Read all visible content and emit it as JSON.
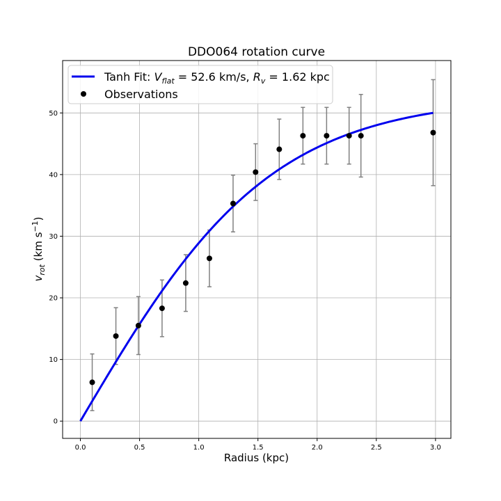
{
  "chart_data": {
    "type": "line",
    "title": "DDO064 rotation curve",
    "xlabel": "Radius (kpc)",
    "ylabel": "v_rot (km s^-1)",
    "xlim": [
      -0.15,
      3.13
    ],
    "ylim": [
      -2.8,
      58.5
    ],
    "x_ticks": [
      "0.0",
      "0.5",
      "1.0",
      "1.5",
      "2.0",
      "2.5",
      "3.0"
    ],
    "y_ticks": [
      "0",
      "10",
      "20",
      "30",
      "40",
      "50"
    ],
    "grid": true,
    "legend_position": "top-left",
    "series": [
      {
        "name": "Tanh Fit: V_flat = 52.6 km/s, R_v = 1.62 kpc",
        "kind": "line",
        "color": "#0000ee",
        "model": "tanh",
        "v_flat": 52.6,
        "r_v": 1.62,
        "x_range": [
          0.0,
          2.98
        ]
      },
      {
        "name": "Observations",
        "kind": "scatter-errorbar",
        "color": "#000000",
        "errorbar_color": "#808080",
        "points": [
          {
            "x": 0.1,
            "y": 6.3,
            "err": 4.6
          },
          {
            "x": 0.3,
            "y": 13.8,
            "err": 4.6
          },
          {
            "x": 0.49,
            "y": 15.5,
            "err": 4.7
          },
          {
            "x": 0.69,
            "y": 18.3,
            "err": 4.6
          },
          {
            "x": 0.89,
            "y": 22.4,
            "err": 4.6
          },
          {
            "x": 1.09,
            "y": 26.4,
            "err": 4.6
          },
          {
            "x": 1.29,
            "y": 35.3,
            "err": 4.6
          },
          {
            "x": 1.48,
            "y": 40.4,
            "err": 4.6
          },
          {
            "x": 1.68,
            "y": 44.1,
            "err": 4.9
          },
          {
            "x": 1.88,
            "y": 46.3,
            "err": 4.6
          },
          {
            "x": 2.08,
            "y": 46.3,
            "err": 4.6
          },
          {
            "x": 2.27,
            "y": 46.3,
            "err": 4.6
          },
          {
            "x": 2.37,
            "y": 46.3,
            "err": 6.7
          },
          {
            "x": 2.98,
            "y": 46.8,
            "err": 8.6
          }
        ]
      }
    ]
  }
}
